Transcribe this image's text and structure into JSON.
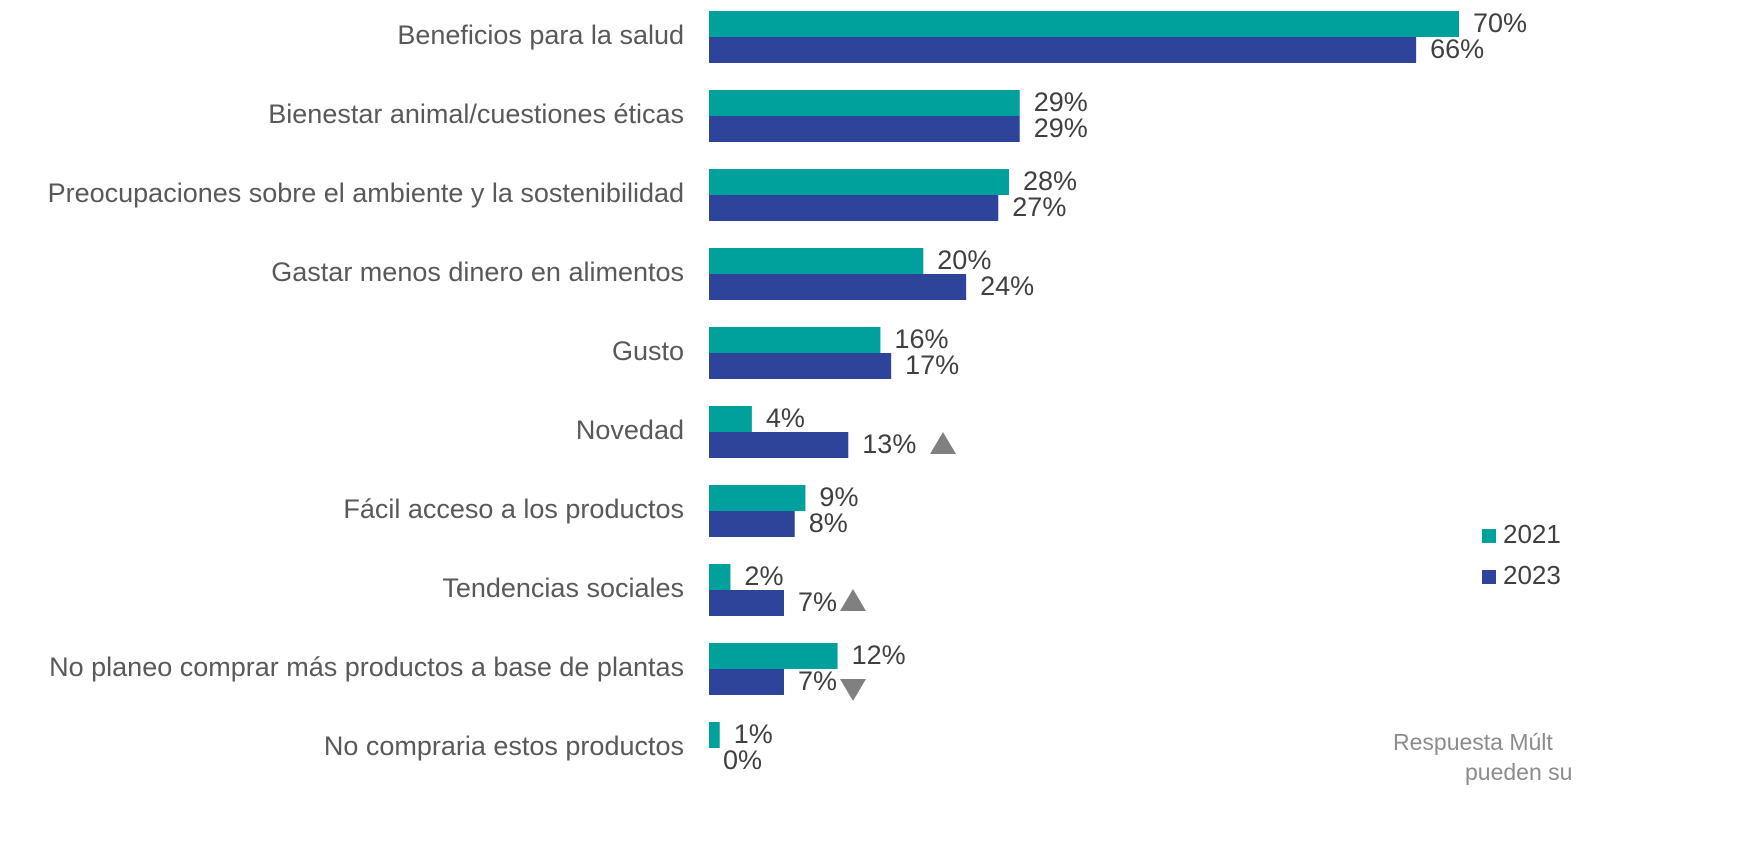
{
  "chart_data": {
    "type": "barh",
    "categories": [
      "Beneficios para la salud",
      "Bienestar animal/cuestiones éticas",
      "Preocupaciones sobre el ambiente y la sostenibilidad",
      "Gastar menos dinero en alimentos",
      "Gusto",
      "Novedad",
      "Fácil acceso a los productos",
      "Tendencias sociales",
      "No planeo comprar más productos a base de plantas",
      "No compraria estos productos"
    ],
    "series": [
      {
        "name": "2021",
        "color": "#00a09c",
        "values": [
          70,
          29,
          28,
          20,
          16,
          4,
          9,
          2,
          12,
          1
        ],
        "value_labels": [
          "70%",
          "29%",
          "28%",
          "20%",
          "16%",
          "4%",
          "9%",
          "2%",
          "12%",
          "1%"
        ]
      },
      {
        "name": "2023",
        "color": "#2e439a",
        "values": [
          66,
          29,
          27,
          24,
          17,
          13,
          8,
          7,
          7,
          0
        ],
        "value_labels": [
          "66%",
          "29%",
          "27%",
          "24%",
          "17%",
          "13%",
          "8%",
          "7%",
          "7%",
          "0%"
        ]
      }
    ],
    "annotations": [
      "Respuesta Múlt",
      "pueden su"
    ],
    "legend": "right"
  }
}
